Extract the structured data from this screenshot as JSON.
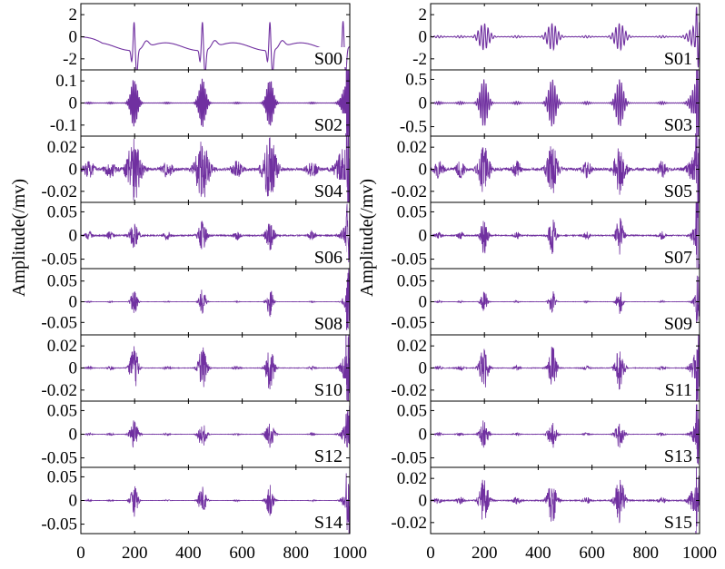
{
  "chart_data": {
    "type": "line",
    "ylabel": "Amplitude(/mv)",
    "line_color": "#7030A0",
    "x_ticks": [
      0,
      200,
      400,
      600,
      800,
      1000
    ],
    "xlim": [
      0,
      1000
    ],
    "x_count": 1000,
    "grid": false,
    "panels": [
      {
        "label": "S00",
        "col": 0,
        "row": 0,
        "ylim": [
          -3,
          3
        ],
        "yticks": [
          2,
          0,
          -2
        ],
        "ytick_labels": [
          "2",
          "0",
          "-2"
        ],
        "peak": 2.6,
        "kind": "ecg"
      },
      {
        "label": "S01",
        "col": 1,
        "row": 0,
        "ylim": [
          -3,
          3
        ],
        "yticks": [
          2,
          0,
          -2
        ],
        "ytick_labels": [
          "2",
          "0",
          "-2"
        ],
        "peak": 1.2,
        "kind": "wave",
        "bg": 0.08,
        "dur": 24,
        "freq": 0.16
      },
      {
        "label": "S02",
        "col": 0,
        "row": 1,
        "ylim": [
          -0.15,
          0.15
        ],
        "yticks": [
          0.1,
          0,
          -0.1
        ],
        "ytick_labels": [
          "0.1",
          "0",
          "-0.1"
        ],
        "peak": 0.11,
        "kind": "wave",
        "bg": 0.03,
        "dur": 16,
        "freq": 0.35
      },
      {
        "label": "S03",
        "col": 1,
        "row": 1,
        "ylim": [
          -0.7,
          0.7
        ],
        "yticks": [
          0.5,
          0,
          -0.5
        ],
        "ytick_labels": [
          "0.5",
          "0",
          "-0.5"
        ],
        "peak": 0.5,
        "kind": "wave",
        "bg": 0.06,
        "dur": 18,
        "freq": 0.25
      },
      {
        "label": "S04",
        "col": 0,
        "row": 2,
        "ylim": [
          -0.03,
          0.03
        ],
        "yticks": [
          0.02,
          0,
          -0.02
        ],
        "ytick_labels": [
          "0.02",
          "0",
          "-0.02"
        ],
        "peak": 0.028,
        "kind": "burst",
        "bg": 0.25,
        "dur": 26
      },
      {
        "label": "S05",
        "col": 1,
        "row": 2,
        "ylim": [
          -0.03,
          0.03
        ],
        "yticks": [
          0.02,
          0,
          -0.02
        ],
        "ytick_labels": [
          "0.02",
          "0",
          "-0.02"
        ],
        "peak": 0.022,
        "kind": "burst",
        "bg": 0.35,
        "dur": 20
      },
      {
        "label": "S06",
        "col": 0,
        "row": 3,
        "ylim": [
          -0.07,
          0.07
        ],
        "yticks": [
          0.05,
          0,
          -0.05
        ],
        "ytick_labels": [
          "0.05",
          "0",
          "-0.05"
        ],
        "peak": 0.03,
        "kind": "burst",
        "bg": 0.3,
        "dur": 16
      },
      {
        "label": "S07",
        "col": 1,
        "row": 3,
        "ylim": [
          -0.07,
          0.07
        ],
        "yticks": [
          0.05,
          0,
          -0.05
        ],
        "ytick_labels": [
          "0.05",
          "0",
          "-0.05"
        ],
        "peak": 0.04,
        "kind": "burst",
        "bg": 0.2,
        "dur": 14
      },
      {
        "label": "S08",
        "col": 0,
        "row": 4,
        "ylim": [
          -0.08,
          0.08
        ],
        "yticks": [
          0.05,
          0,
          -0.05
        ],
        "ytick_labels": [
          "0.05",
          "0",
          "-0.05"
        ],
        "peak": 0.035,
        "kind": "burst",
        "bg": 0.05,
        "dur": 12
      },
      {
        "label": "S09",
        "col": 1,
        "row": 4,
        "ylim": [
          -0.08,
          0.08
        ],
        "yticks": [
          0.05,
          0,
          -0.05
        ],
        "ytick_labels": [
          "0.05",
          "0",
          "-0.05"
        ],
        "peak": 0.03,
        "kind": "burst",
        "bg": 0.08,
        "dur": 12
      },
      {
        "label": "S10",
        "col": 0,
        "row": 5,
        "ylim": [
          -0.03,
          0.03
        ],
        "yticks": [
          0.02,
          0,
          -0.02
        ],
        "ytick_labels": [
          "0.02",
          "0",
          "-0.02"
        ],
        "peak": 0.02,
        "kind": "burst",
        "bg": 0.08,
        "dur": 16
      },
      {
        "label": "S11",
        "col": 1,
        "row": 5,
        "ylim": [
          -0.03,
          0.03
        ],
        "yticks": [
          0.02,
          0,
          -0.02
        ],
        "ytick_labels": [
          "0.02",
          "0",
          "-0.02"
        ],
        "peak": 0.02,
        "kind": "burst",
        "bg": 0.1,
        "dur": 16
      },
      {
        "label": "S12",
        "col": 0,
        "row": 6,
        "ylim": [
          -0.07,
          0.07
        ],
        "yticks": [
          0.05,
          0,
          -0.05
        ],
        "ytick_labels": [
          "0.05",
          "0",
          "-0.05"
        ],
        "peak": 0.03,
        "kind": "burst",
        "bg": 0.08,
        "dur": 16
      },
      {
        "label": "S13",
        "col": 1,
        "row": 6,
        "ylim": [
          -0.07,
          0.07
        ],
        "yticks": [
          0.05,
          0,
          -0.05
        ],
        "ytick_labels": [
          "0.05",
          "0",
          "-0.05"
        ],
        "peak": 0.03,
        "kind": "burst",
        "bg": 0.1,
        "dur": 16
      },
      {
        "label": "S14",
        "col": 0,
        "row": 7,
        "ylim": [
          -0.07,
          0.07
        ],
        "yticks": [
          0.05,
          0,
          -0.05
        ],
        "ytick_labels": [
          "0.05",
          "0",
          "-0.05"
        ],
        "peak": 0.035,
        "kind": "burst",
        "bg": 0.05,
        "dur": 14
      },
      {
        "label": "S15",
        "col": 1,
        "row": 7,
        "ylim": [
          -0.03,
          0.03
        ],
        "yticks": [
          0.02,
          0,
          -0.02
        ],
        "ytick_labels": [
          "0.02",
          "0",
          "-0.02"
        ],
        "peak": 0.02,
        "kind": "burst",
        "bg": 0.15,
        "dur": 18
      }
    ],
    "beats": [
      198,
      452,
      703,
      975
    ]
  }
}
